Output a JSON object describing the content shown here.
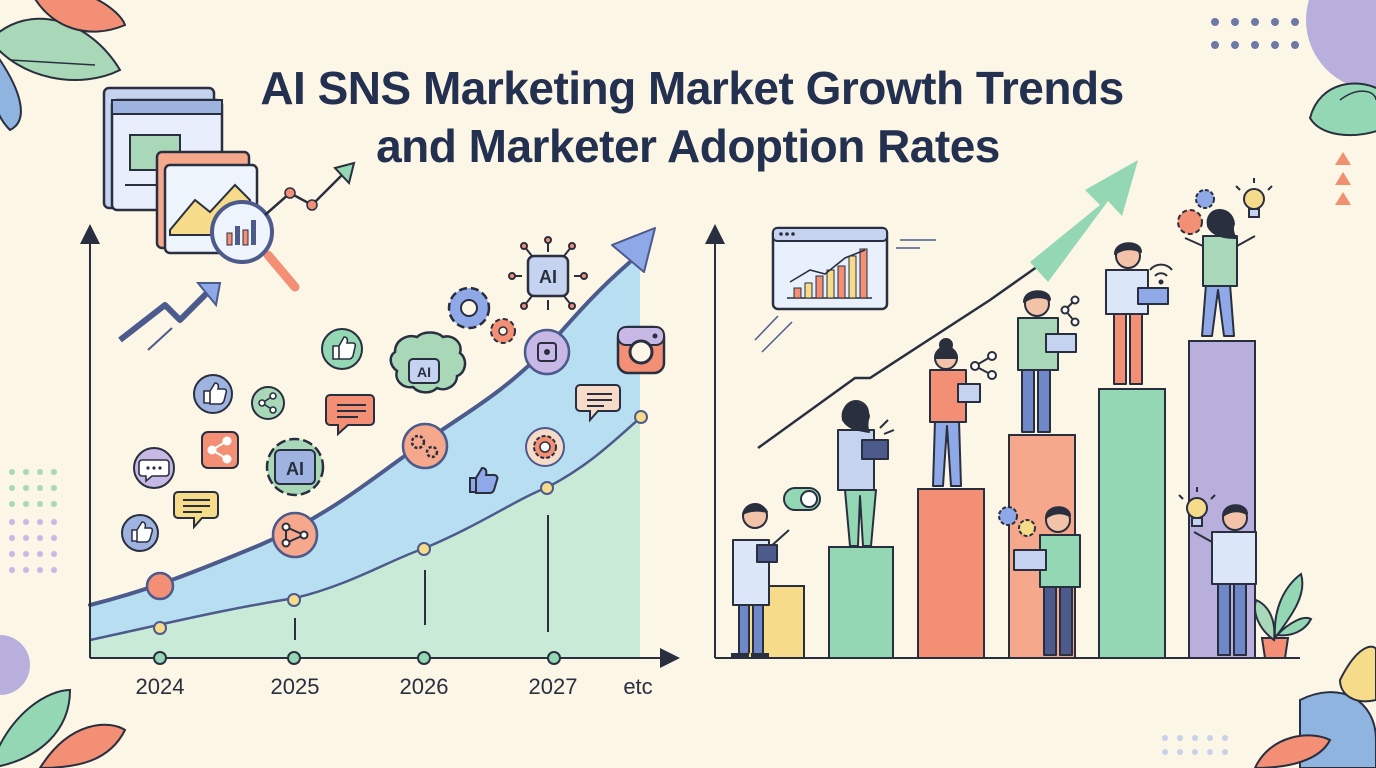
{
  "title": {
    "line1": "AI SNS Marketing Market Growth Trends",
    "line2": "and Marketer Adoption Rates"
  },
  "timeline": {
    "years": [
      "2024",
      "2025",
      "2026",
      "2027",
      "etc"
    ]
  },
  "icon_text": {
    "ai": "AI"
  },
  "colors": {
    "background": "#fbf6e6",
    "title": "#24304f",
    "area_blue": "#b8def2",
    "area_green": "#c9ead7",
    "line": "#4c5a8c",
    "bar_yellow": "#f6dc8a",
    "bar_green": "#93d7b4",
    "bar_red": "#f28f75",
    "bar_salmon": "#f5a88c",
    "bar_purple": "#b9afdc"
  },
  "icons": [
    "browser-window-icon",
    "magnifier-chart-icon",
    "trend-arrow-icon",
    "thumbs-up-icon",
    "share-icon",
    "chat-bubble-icon",
    "gear-ai-icon",
    "brain-ai-icon",
    "chip-ai-icon",
    "camera-app-icon",
    "lightbulb-icon",
    "laptop-icon",
    "wifi-icon"
  ]
}
